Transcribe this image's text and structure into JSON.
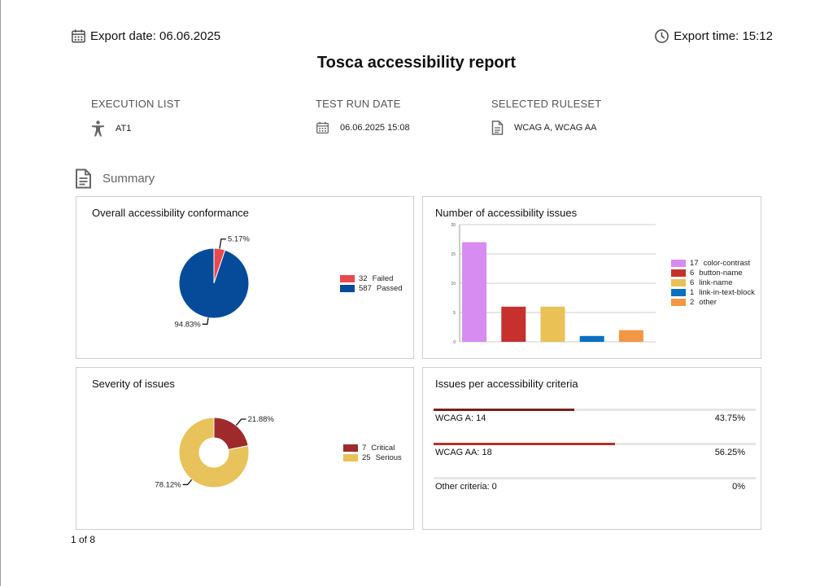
{
  "header": {
    "export_date": "Export date: 06.06.2025",
    "export_time": "Export time: 15:12",
    "title": "Tosca accessibility report"
  },
  "meta": {
    "execution_list": {
      "label": "EXECUTION LIST",
      "value": "AT1",
      "icon": "accessibility-person-icon"
    },
    "test_run_date": {
      "label": "TEST RUN DATE",
      "value": "06.06.2025 15:08",
      "icon": "calendar-icon"
    },
    "selected_ruleset": {
      "label": "SELECTED RULESET",
      "value": "WCAG A, WCAG AA",
      "icon": "document-icon"
    }
  },
  "summary": {
    "label": "Summary",
    "icon": "document-icon"
  },
  "chart_data": [
    {
      "type": "pie",
      "title": "Overall accessibility conformance",
      "series": [
        {
          "name": "Failed",
          "value": 32,
          "label": "5.17%",
          "color": "#e8494f"
        },
        {
          "name": "Passed",
          "value": 587,
          "label": "94.83%",
          "color": "#064b9a"
        }
      ],
      "legend": "right"
    },
    {
      "type": "bar",
      "title": "Number of accessibility issues",
      "categories": [
        "color-contrast",
        "button-name",
        "link-name",
        "link-in-text-block",
        "other"
      ],
      "values": [
        17,
        6,
        6,
        1,
        2
      ],
      "colors": [
        "#d68cf0",
        "#c6312e",
        "#e9c154",
        "#0a6fc2",
        "#f49745"
      ],
      "ylim": [
        0,
        20
      ],
      "yticks": [
        "0",
        "5",
        "10",
        "15",
        "20"
      ],
      "grid": true,
      "legend": "right"
    },
    {
      "type": "pie",
      "title": "Severity of issues",
      "donut": true,
      "series": [
        {
          "name": "Critical",
          "value": 7,
          "label": "21.88%",
          "color": "#9e2a2b"
        },
        {
          "name": "Serious",
          "value": 25,
          "label": "78.12%",
          "color": "#e8c25a"
        }
      ],
      "legend": "right"
    },
    {
      "type": "bar",
      "title": "Issues per accessibility criteria",
      "items": [
        {
          "label": "WCAG A: 14",
          "percent_label": "43.75%",
          "value": 0.4375,
          "color": "#7b1d1f"
        },
        {
          "label": "WCAG AA: 18",
          "percent_label": "56.25%",
          "value": 0.5625,
          "color": "#b8302e"
        },
        {
          "label": "Other criteria: 0",
          "percent_label": "0%",
          "value": 0,
          "color": "#f49745"
        }
      ]
    }
  ],
  "footer": {
    "page": "1 of 8"
  }
}
